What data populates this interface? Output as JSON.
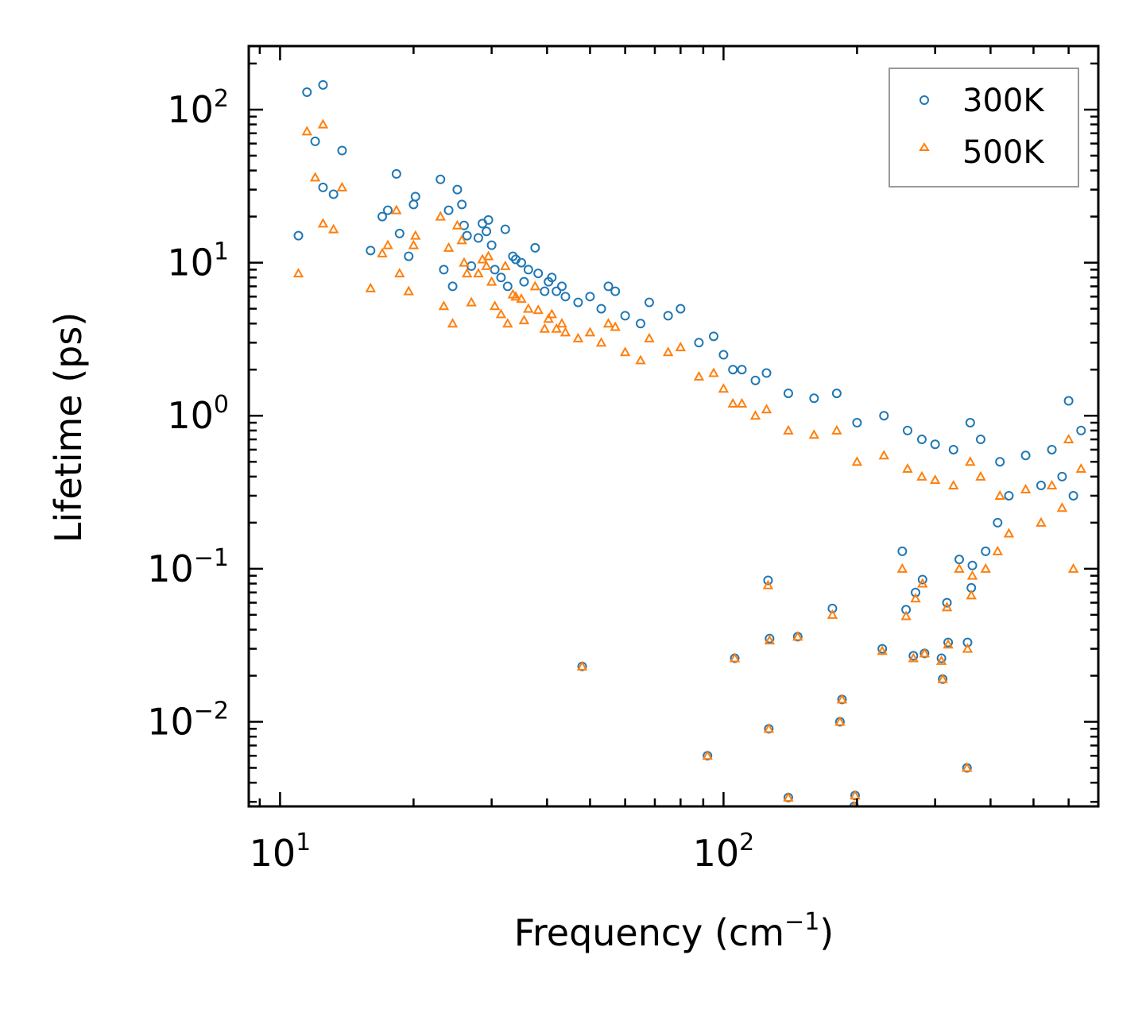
{
  "chart_data": {
    "type": "scatter",
    "title": "",
    "xlabel": {
      "text": "Frequency (cm",
      "sup": "−1",
      "tail": ")"
    },
    "ylabel": "Lifetime (ps)",
    "xscale": "log",
    "yscale": "log",
    "xlim": [
      8.5,
      700
    ],
    "ylim": [
      0.0028,
      260
    ],
    "xticks": [
      {
        "value": 10,
        "base": "10",
        "exp": "1"
      },
      {
        "value": 100,
        "base": "10",
        "exp": "2"
      }
    ],
    "yticks": [
      {
        "value": 100,
        "base": "10",
        "exp": "2"
      },
      {
        "value": 10,
        "base": "10",
        "exp": "1"
      },
      {
        "value": 1,
        "base": "10",
        "exp": "0"
      },
      {
        "value": 0.1,
        "base": "10",
        "exp": "−1"
      },
      {
        "value": 0.01,
        "base": "10",
        "exp": "−2"
      }
    ],
    "legend": {
      "position": "top-right"
    },
    "series": [
      {
        "name": "300K",
        "marker": "circle",
        "color": "#1f77b4",
        "points": [
          [
            11.0,
            15
          ],
          [
            11.5,
            130
          ],
          [
            12.0,
            62
          ],
          [
            12.5,
            145
          ],
          [
            12.5,
            31
          ],
          [
            13.2,
            28
          ],
          [
            13.8,
            54
          ],
          [
            16,
            12
          ],
          [
            17,
            20
          ],
          [
            17.5,
            22
          ],
          [
            18.3,
            38
          ],
          [
            18.6,
            15.5
          ],
          [
            19.5,
            11
          ],
          [
            20,
            24
          ],
          [
            20.2,
            27
          ],
          [
            23,
            35
          ],
          [
            23.4,
            9
          ],
          [
            24,
            22
          ],
          [
            24.5,
            7
          ],
          [
            25.1,
            30
          ],
          [
            25.7,
            24
          ],
          [
            26,
            17.5
          ],
          [
            26.4,
            15
          ],
          [
            27,
            9.5
          ],
          [
            28,
            14.5
          ],
          [
            28.6,
            18
          ],
          [
            29.2,
            16
          ],
          [
            29.5,
            19
          ],
          [
            30,
            13
          ],
          [
            30.5,
            9
          ],
          [
            31.5,
            8
          ],
          [
            32.2,
            16.5
          ],
          [
            32.6,
            7
          ],
          [
            33.5,
            11
          ],
          [
            34,
            10.5
          ],
          [
            35,
            10
          ],
          [
            35.5,
            7.5
          ],
          [
            36.3,
            9
          ],
          [
            37.6,
            12.5
          ],
          [
            38.2,
            8.5
          ],
          [
            39.5,
            6.5
          ],
          [
            40.3,
            7.5
          ],
          [
            41,
            8
          ],
          [
            42,
            6.5
          ],
          [
            43.2,
            7
          ],
          [
            44,
            6
          ],
          [
            47,
            5.5
          ],
          [
            48,
            0.023
          ],
          [
            50,
            6
          ],
          [
            53,
            5
          ],
          [
            55,
            7
          ],
          [
            57,
            6.5
          ],
          [
            60,
            4.5
          ],
          [
            65,
            4
          ],
          [
            68,
            5.5
          ],
          [
            75,
            4.5
          ],
          [
            80,
            5
          ],
          [
            88,
            3
          ],
          [
            95,
            3.3
          ],
          [
            100,
            2.5
          ],
          [
            105,
            2
          ],
          [
            110,
            2
          ],
          [
            118,
            1.7
          ],
          [
            125,
            1.9
          ],
          [
            140,
            1.4
          ],
          [
            160,
            1.3
          ],
          [
            180,
            1.4
          ],
          [
            200,
            0.9
          ],
          [
            230,
            1
          ],
          [
            260,
            0.8
          ],
          [
            280,
            0.7
          ],
          [
            300,
            0.65
          ],
          [
            330,
            0.6
          ],
          [
            360,
            0.9
          ],
          [
            380,
            0.7
          ],
          [
            420,
            0.5
          ],
          [
            480,
            0.55
          ],
          [
            550,
            0.6
          ],
          [
            600,
            1.25
          ],
          [
            640,
            0.8
          ],
          [
            92,
            0.006
          ],
          [
            106,
            0.026
          ],
          [
            126,
            0.084
          ],
          [
            126.5,
            0.009
          ],
          [
            127,
            0.035
          ],
          [
            140,
            0.0032
          ],
          [
            147,
            0.036
          ],
          [
            176,
            0.055
          ],
          [
            183,
            0.01
          ],
          [
            185,
            0.014
          ],
          [
            197,
            0.0028
          ],
          [
            198,
            0.0033
          ],
          [
            228,
            0.03
          ],
          [
            253,
            0.13
          ],
          [
            258,
            0.054
          ],
          [
            268,
            0.027
          ],
          [
            271,
            0.07
          ],
          [
            281,
            0.085
          ],
          [
            284,
            0.028
          ],
          [
            310,
            0.026
          ],
          [
            312,
            0.019
          ],
          [
            319,
            0.06
          ],
          [
            321,
            0.033
          ],
          [
            340,
            0.115
          ],
          [
            354,
            0.005
          ],
          [
            355,
            0.033
          ],
          [
            362,
            0.075
          ],
          [
            364,
            0.105
          ],
          [
            390,
            0.13
          ],
          [
            415,
            0.2
          ],
          [
            440,
            0.3
          ],
          [
            520,
            0.35
          ],
          [
            580,
            0.4
          ],
          [
            615,
            0.3
          ]
        ]
      },
      {
        "name": "500K",
        "marker": "triangle",
        "color": "#ff7f0e",
        "points": [
          [
            11.0,
            8.5
          ],
          [
            11.5,
            72
          ],
          [
            12.0,
            36
          ],
          [
            12.5,
            80
          ],
          [
            12.5,
            18
          ],
          [
            13.2,
            16.5
          ],
          [
            13.8,
            31
          ],
          [
            16,
            6.8
          ],
          [
            17,
            11.5
          ],
          [
            17.5,
            13
          ],
          [
            18.3,
            22
          ],
          [
            18.6,
            8.5
          ],
          [
            19.5,
            6.5
          ],
          [
            20,
            13
          ],
          [
            20.2,
            15
          ],
          [
            23,
            20
          ],
          [
            23.4,
            5.2
          ],
          [
            24,
            12.5
          ],
          [
            24.5,
            4
          ],
          [
            25.1,
            17.5
          ],
          [
            25.7,
            14
          ],
          [
            26,
            10
          ],
          [
            26.4,
            8.5
          ],
          [
            27,
            5.5
          ],
          [
            28,
            8.5
          ],
          [
            28.6,
            10.5
          ],
          [
            29.2,
            9.5
          ],
          [
            29.5,
            11
          ],
          [
            30,
            7.5
          ],
          [
            30.5,
            5.2
          ],
          [
            31.5,
            4.6
          ],
          [
            32.2,
            9.5
          ],
          [
            32.6,
            4
          ],
          [
            33.5,
            6.2
          ],
          [
            34,
            6
          ],
          [
            35,
            5.8
          ],
          [
            35.5,
            4.2
          ],
          [
            36.3,
            5
          ],
          [
            37.6,
            7
          ],
          [
            38.2,
            4.9
          ],
          [
            39.5,
            3.7
          ],
          [
            40.3,
            4.3
          ],
          [
            41,
            4.6
          ],
          [
            42,
            3.7
          ],
          [
            43.2,
            4
          ],
          [
            44,
            3.5
          ],
          [
            47,
            3.2
          ],
          [
            48,
            0.023
          ],
          [
            50,
            3.5
          ],
          [
            53,
            3
          ],
          [
            55,
            4
          ],
          [
            57,
            3.8
          ],
          [
            60,
            2.6
          ],
          [
            65,
            2.3
          ],
          [
            68,
            3.2
          ],
          [
            75,
            2.6
          ],
          [
            80,
            2.8
          ],
          [
            88,
            1.8
          ],
          [
            95,
            1.9
          ],
          [
            100,
            1.5
          ],
          [
            105,
            1.2
          ],
          [
            110,
            1.2
          ],
          [
            118,
            1.0
          ],
          [
            125,
            1.1
          ],
          [
            140,
            0.8
          ],
          [
            160,
            0.75
          ],
          [
            180,
            0.8
          ],
          [
            200,
            0.5
          ],
          [
            230,
            0.55
          ],
          [
            260,
            0.45
          ],
          [
            280,
            0.4
          ],
          [
            300,
            0.38
          ],
          [
            330,
            0.35
          ],
          [
            360,
            0.5
          ],
          [
            380,
            0.4
          ],
          [
            420,
            0.3
          ],
          [
            480,
            0.33
          ],
          [
            550,
            0.35
          ],
          [
            600,
            0.7
          ],
          [
            640,
            0.45
          ],
          [
            92,
            0.006
          ],
          [
            106,
            0.026
          ],
          [
            126,
            0.078
          ],
          [
            126.5,
            0.009
          ],
          [
            127,
            0.034
          ],
          [
            140,
            0.0032
          ],
          [
            147,
            0.036
          ],
          [
            176,
            0.05
          ],
          [
            183,
            0.01
          ],
          [
            185,
            0.014
          ],
          [
            197,
            0.0028
          ],
          [
            198,
            0.0033
          ],
          [
            228,
            0.029
          ],
          [
            253,
            0.1
          ],
          [
            258,
            0.049
          ],
          [
            268,
            0.026
          ],
          [
            271,
            0.064
          ],
          [
            281,
            0.08
          ],
          [
            284,
            0.028
          ],
          [
            310,
            0.025
          ],
          [
            312,
            0.019
          ],
          [
            319,
            0.056
          ],
          [
            321,
            0.032
          ],
          [
            340,
            0.1
          ],
          [
            354,
            0.005
          ],
          [
            355,
            0.03
          ],
          [
            362,
            0.067
          ],
          [
            364,
            0.09
          ],
          [
            390,
            0.1
          ],
          [
            415,
            0.13
          ],
          [
            440,
            0.17
          ],
          [
            520,
            0.2
          ],
          [
            580,
            0.25
          ],
          [
            615,
            0.1
          ]
        ]
      }
    ]
  }
}
